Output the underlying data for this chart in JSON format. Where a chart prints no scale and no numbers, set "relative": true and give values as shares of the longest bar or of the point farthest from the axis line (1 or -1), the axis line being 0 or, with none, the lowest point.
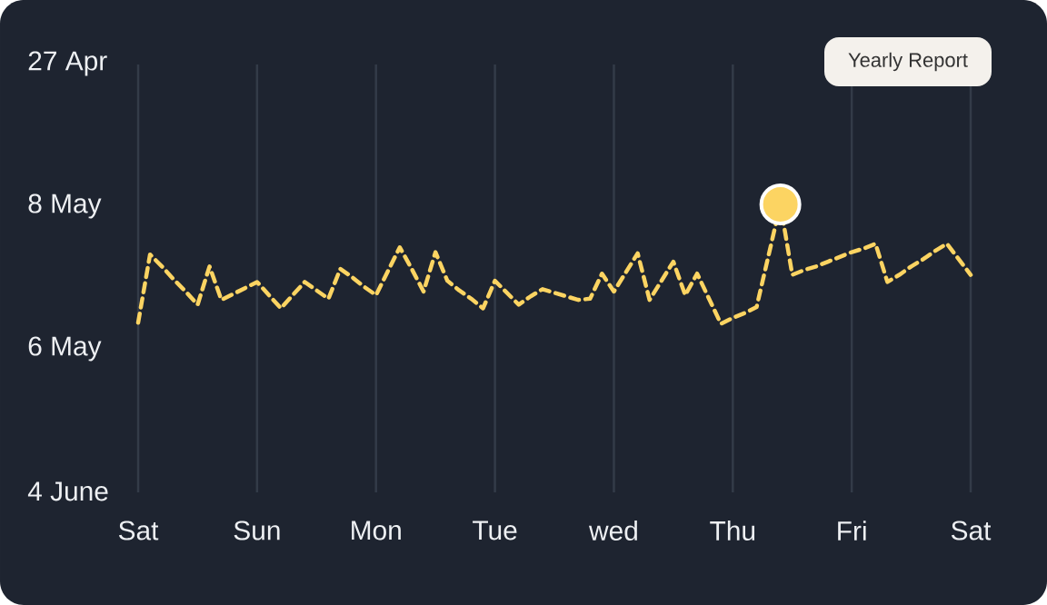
{
  "chart_data": {
    "type": "line",
    "relative": true,
    "annotations": [
      "Yearly Report",
      "27 Apr",
      "8 May",
      "6 May",
      "4 June"
    ],
    "categories": [
      "Sat",
      null,
      null,
      null,
      null,
      null,
      null,
      null,
      null,
      null,
      "Sun",
      null,
      null,
      null,
      null,
      null,
      null,
      null,
      null,
      null,
      "Mon",
      null,
      null,
      null,
      null,
      null,
      null,
      null,
      null,
      null,
      "Tue",
      null,
      null,
      null,
      null,
      null,
      null,
      null,
      null,
      null,
      "wed",
      null,
      null,
      null,
      null,
      null,
      null,
      null,
      null,
      null,
      "Thu",
      null,
      null,
      null,
      null,
      null,
      null,
      null,
      null,
      null,
      "Fri",
      null,
      null,
      null,
      null,
      null,
      null,
      null,
      null,
      null,
      "Sat"
    ],
    "grid": "x",
    "line_style": "dashed",
    "marker": "none",
    "series": [
      {
        "color": "#fcd462",
        "values": [
          0.01,
          0.58,
          0.48,
          0.37,
          0.27,
          0.16,
          0.48,
          0.2,
          0.25,
          0.3,
          0.35,
          0.24,
          0.13,
          0.24,
          0.35,
          0.28,
          0.21,
          0.46,
          0.39,
          0.31,
          0.24,
          0.44,
          0.64,
          0.46,
          0.27,
          0.6,
          0.36,
          0.28,
          0.21,
          0.13,
          0.36,
          0.26,
          0.16,
          0.23,
          0.29,
          0.26,
          0.23,
          0.2,
          0.21,
          0.42,
          0.27,
          0.43,
          0.59,
          0.2,
          0.36,
          0.52,
          0.24,
          0.42,
          0.21,
          0,
          0.05,
          0.09,
          0.14,
          0.57,
          1,
          0.41,
          0.45,
          0.48,
          0.52,
          0.56,
          0.6,
          0.63,
          0.67,
          0.35,
          0.41,
          0.48,
          0.54,
          0.61,
          0.67,
          0.54,
          0.41
        ]
      },
      {
        "type": "scatter",
        "marker": "circle",
        "color": "#fcd462",
        "values": [
          null,
          null,
          null,
          null,
          null,
          null,
          null,
          null,
          null,
          null,
          null,
          null,
          null,
          null,
          null,
          null,
          null,
          null,
          null,
          null,
          null,
          null,
          null,
          null,
          null,
          null,
          null,
          null,
          null,
          null,
          null,
          null,
          null,
          null,
          null,
          null,
          null,
          null,
          null,
          null,
          null,
          null,
          null,
          null,
          null,
          null,
          null,
          null,
          null,
          null,
          null,
          null,
          null,
          null,
          1,
          null,
          null,
          null,
          null,
          null,
          null,
          null,
          null,
          null,
          null,
          null,
          null,
          null,
          null,
          null,
          null
        ]
      }
    ]
  }
}
